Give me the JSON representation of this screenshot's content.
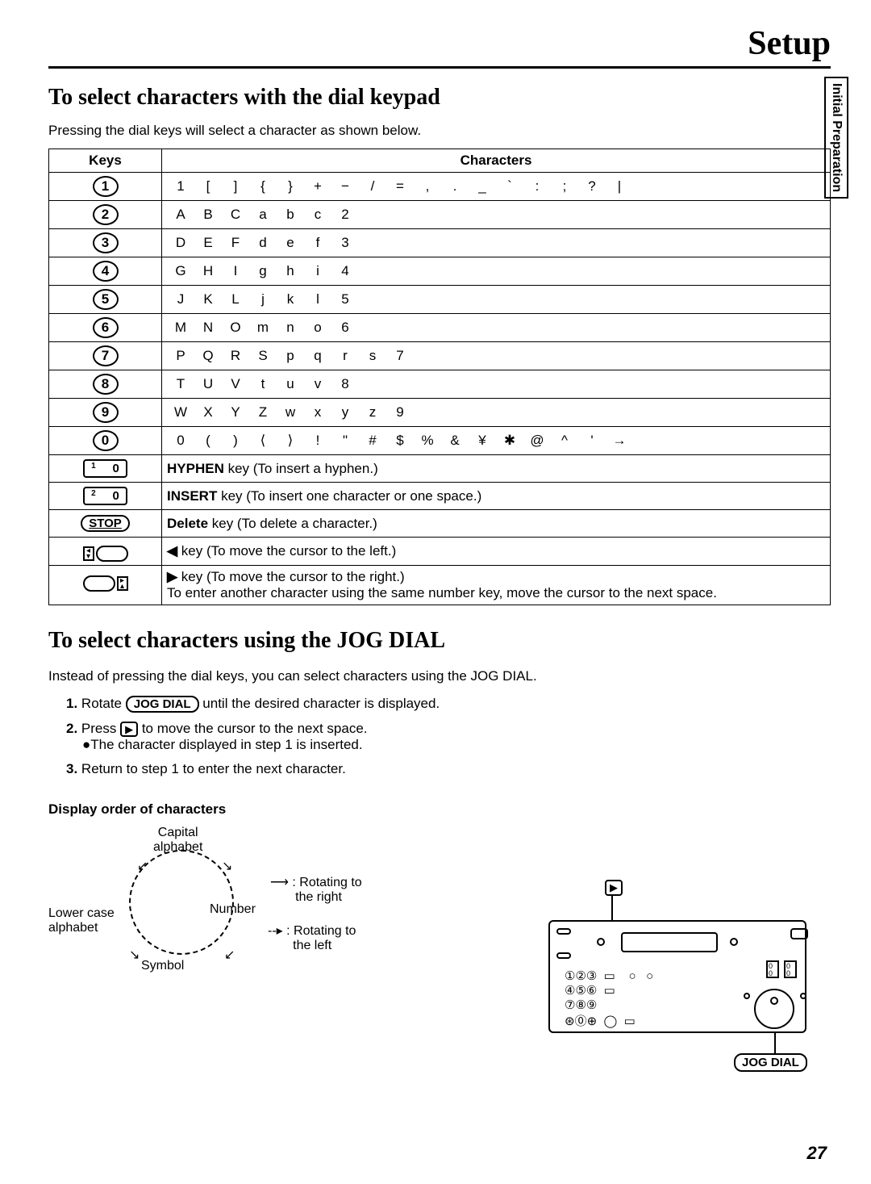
{
  "header": {
    "title": "Setup"
  },
  "side_tab": "Initial Preparation",
  "section1": {
    "title": "To select characters with the dial keypad",
    "intro": "Pressing the dial keys will select a character as shown below.",
    "table_headers": {
      "keys": "Keys",
      "chars": "Characters"
    },
    "rows": [
      {
        "key": "1",
        "chars": [
          "1",
          "[",
          "]",
          "{",
          "}",
          "+",
          "−",
          "/",
          "=",
          ",",
          ".",
          "_",
          "`",
          ":",
          ";",
          "?",
          "|"
        ]
      },
      {
        "key": "2",
        "chars": [
          "A",
          "B",
          "C",
          "a",
          "b",
          "c",
          "2"
        ]
      },
      {
        "key": "3",
        "chars": [
          "D",
          "E",
          "F",
          "d",
          "e",
          "f",
          "3"
        ]
      },
      {
        "key": "4",
        "chars": [
          "G",
          "H",
          "I",
          "g",
          "h",
          "i",
          "4"
        ]
      },
      {
        "key": "5",
        "chars": [
          "J",
          "K",
          "L",
          "j",
          "k",
          "l",
          "5"
        ]
      },
      {
        "key": "6",
        "chars": [
          "M",
          "N",
          "O",
          "m",
          "n",
          "o",
          "6"
        ]
      },
      {
        "key": "7",
        "chars": [
          "P",
          "Q",
          "R",
          "S",
          "p",
          "q",
          "r",
          "s",
          "7"
        ]
      },
      {
        "key": "8",
        "chars": [
          "T",
          "U",
          "V",
          "t",
          "u",
          "v",
          "8"
        ]
      },
      {
        "key": "9",
        "chars": [
          "W",
          "X",
          "Y",
          "Z",
          "w",
          "x",
          "y",
          "z",
          "9"
        ]
      },
      {
        "key": "0",
        "chars": [
          "0",
          "(",
          ")",
          "⟨",
          "⟩",
          "!",
          "\"",
          "#",
          "$",
          "%",
          "&",
          "¥",
          "✱",
          "@",
          "^",
          "'",
          "→"
        ]
      }
    ],
    "func_rows": [
      {
        "key_label": "¹    0",
        "desc_bold": "HYPHEN",
        "desc_rest": " key (To insert a hyphen.)"
      },
      {
        "key_label": "²    0",
        "desc_bold": "INSERT",
        "desc_rest": " key (To insert one character or one space.)"
      },
      {
        "key_label": "STOP",
        "desc_bold": "Delete",
        "desc_rest": " key (To delete a character.)"
      },
      {
        "key_label": "left",
        "desc_bold": "◀",
        "desc_rest": " key (To move the cursor to the left.)"
      },
      {
        "key_label": "right",
        "desc_bold": "▶",
        "desc_rest": " key (To move the cursor to the right.)",
        "desc_line2": "To enter another character using the same number key, move the cursor to the next space."
      }
    ]
  },
  "section2": {
    "title": "To select characters using the JOG DIAL",
    "intro": "Instead of pressing the dial keys, you can select characters using the JOG DIAL.",
    "steps": [
      {
        "pre": "Rotate ",
        "key": "JOG DIAL",
        "post": " until the desired character is displayed."
      },
      {
        "pre": "Press ",
        "icon": "▶",
        "post": " to move the cursor to the next space.",
        "sub": "●The character displayed in step 1 is inserted."
      },
      {
        "pre": "Return to step 1 to enter the next character."
      }
    ],
    "display_order_title": "Display order of characters",
    "circle": {
      "capital": "Capital\nalphabet",
      "lowercase": "Lower case\nalphabet",
      "number": "Number",
      "symbol": "Symbol",
      "rot_right": ": Rotating to\n  the right",
      "rot_left": ": Rotating to\n  the left"
    },
    "jog_label": "JOG DIAL"
  },
  "page_number": "27",
  "colors": {
    "text": "#000000",
    "bg": "#ffffff"
  }
}
